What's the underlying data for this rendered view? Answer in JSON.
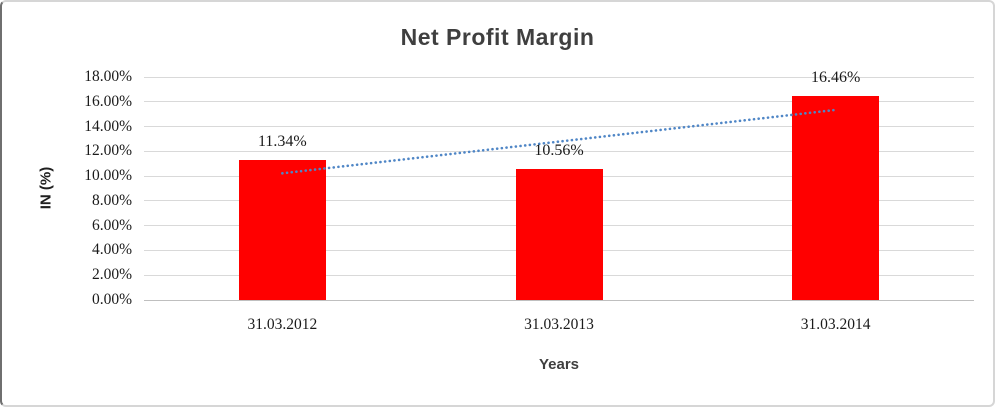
{
  "chart_data": {
    "type": "bar",
    "title": "Net Profit Margin",
    "xlabel": "Years",
    "ylabel": "IN (%)",
    "categories": [
      "31.03.2012",
      "31.03.2013",
      "31.03.2014"
    ],
    "values": [
      11.34,
      10.56,
      16.46
    ],
    "data_labels": [
      "11.34%",
      "10.56%",
      "16.46%"
    ],
    "ylim": [
      0,
      18
    ],
    "ytick_step": 2,
    "ytick_labels": [
      "0.00%",
      "2.00%",
      "4.00%",
      "6.00%",
      "8.00%",
      "10.00%",
      "12.00%",
      "14.00%",
      "16.00%",
      "18.00%"
    ],
    "grid": true,
    "legend": "none",
    "trendline": {
      "type": "linear",
      "style": "dotted",
      "color": "#4F86C6"
    },
    "colors": {
      "bar": "#FF0000",
      "gridline": "#D9D9D9",
      "axis_line": "#BFBFBF",
      "title_text": "#3F3F3F",
      "tick_text": "#1A1A1A"
    }
  }
}
